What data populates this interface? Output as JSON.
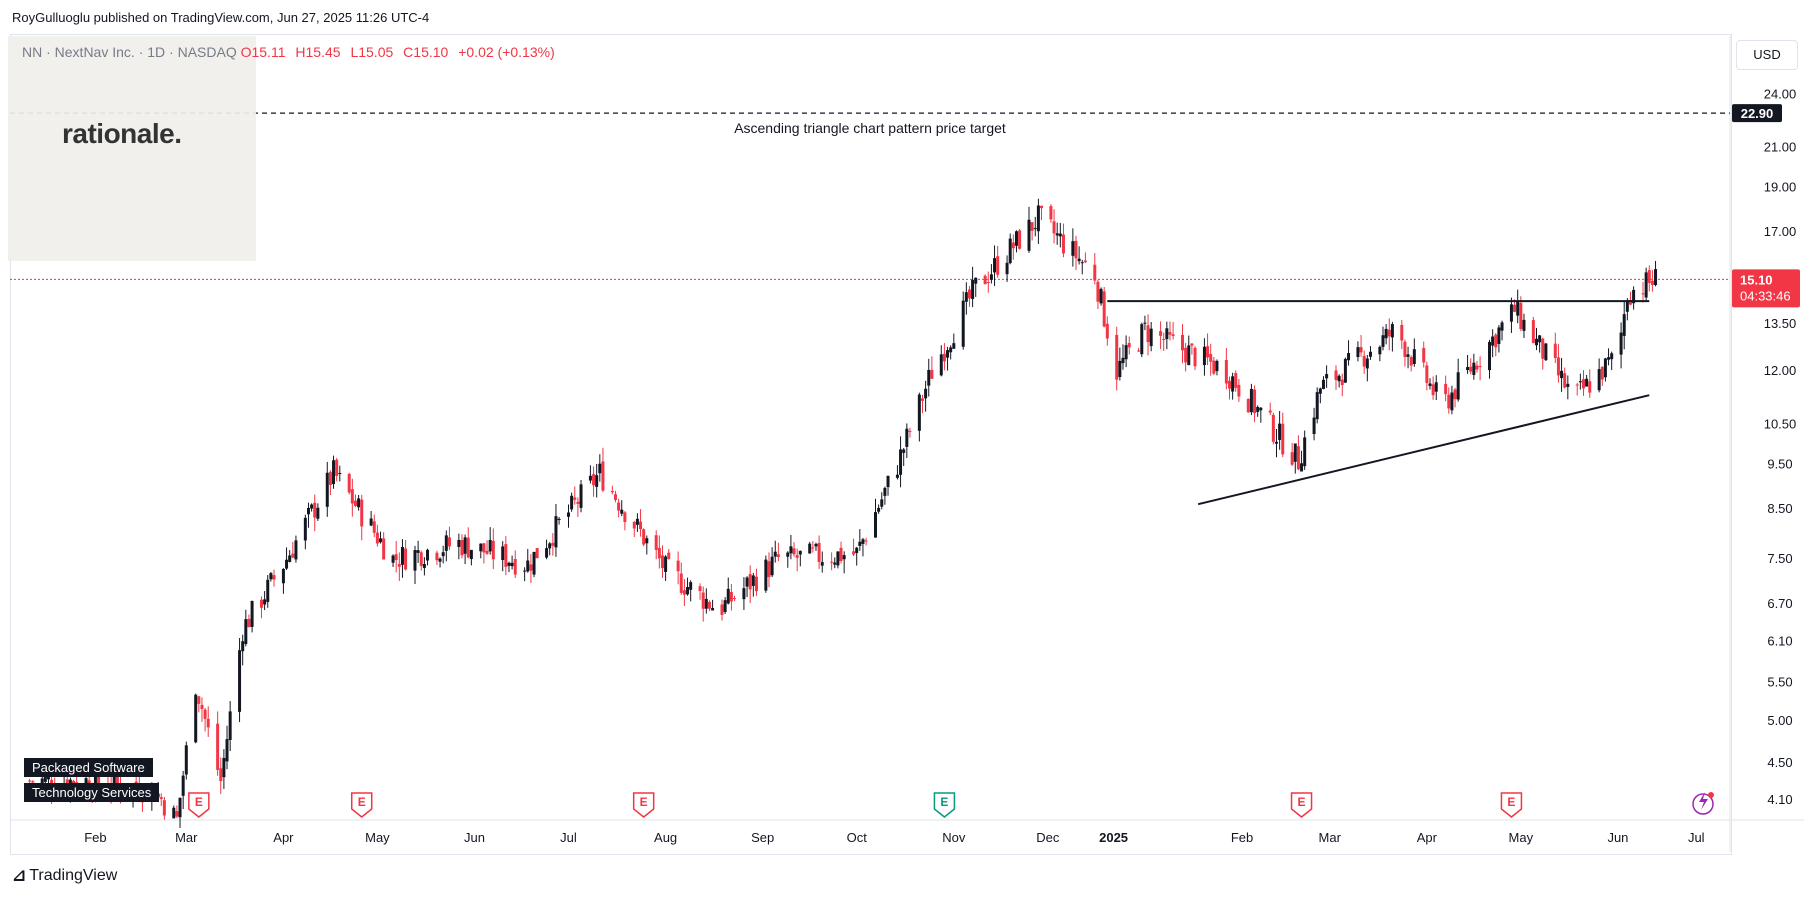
{
  "publisher": "RoyGulluoglu published on TradingView.com, Jun 27, 2025 11:26 UTC-4",
  "header": {
    "symbol": "NN · NextNav Inc. · 1D · NASDAQ",
    "open_label": "O",
    "open": "15.11",
    "high_label": "H",
    "high": "15.45",
    "low_label": "L",
    "low": "15.05",
    "close_label": "C",
    "close": "15.10",
    "change": "+0.02 (+0.13%)"
  },
  "logo_text": "rationale.",
  "currency": "USD",
  "tags": [
    "Packaged Software",
    "Technology Services"
  ],
  "footer_brand": "TradingView",
  "colors": {
    "up": "#089981",
    "down": "#f23645",
    "candle": "#131722",
    "annotation": "#131722"
  },
  "chart_data": {
    "type": "candlestick",
    "y_scale": "log",
    "ylim": [
      3.9,
      27.5
    ],
    "y_ticks": [
      "24.00",
      "21.00",
      "19.00",
      "17.00",
      "13.50",
      "12.00",
      "10.50",
      "9.50",
      "8.50",
      "7.50",
      "6.70",
      "6.10",
      "5.50",
      "5.00",
      "4.50",
      "4.10"
    ],
    "x_ticks": [
      "Feb",
      "Mar",
      "Apr",
      "May",
      "Jun",
      "Jul",
      "Aug",
      "Sep",
      "Oct",
      "Nov",
      "Dec",
      "2025",
      "Feb",
      "Mar",
      "Apr",
      "May",
      "Jun",
      "Jul"
    ],
    "last_price": "15.10",
    "countdown": "04:33:46",
    "target_price": "22.90",
    "target_label": "Ascending triangle chart pattern price target",
    "resistance_level": 14.3,
    "support_line": {
      "from": {
        "date": "2025-02-01",
        "price": 8.6
      },
      "to": {
        "date": "2025-06-25",
        "price": 11.3
      }
    },
    "resistance_line": {
      "from": {
        "date": "2025-01-03",
        "price": 14.3
      },
      "to": {
        "date": "2025-06-25",
        "price": 14.3
      }
    },
    "earnings_markers": [
      {
        "label": "E",
        "month": "Mar 2024"
      },
      {
        "label": "E",
        "month": "May 2024"
      },
      {
        "label": "E",
        "month": "Aug 2024"
      },
      {
        "label": "E",
        "month": "Nov 2024"
      },
      {
        "label": "E",
        "month": "Mar 2025"
      },
      {
        "label": "E",
        "month": "May 2025"
      }
    ],
    "price_path": [
      {
        "date": "2024-01-25",
        "price": 4.3
      },
      {
        "date": "2024-02-15",
        "price": 4.3
      },
      {
        "date": "2024-03-05",
        "price": 4.2
      },
      {
        "date": "2024-03-12",
        "price": 3.9
      },
      {
        "date": "2024-03-18",
        "price": 5.5
      },
      {
        "date": "2024-03-26",
        "price": 4.3
      },
      {
        "date": "2024-04-02",
        "price": 6.3
      },
      {
        "date": "2024-04-15",
        "price": 7.4
      },
      {
        "date": "2024-05-01",
        "price": 9.3
      },
      {
        "date": "2024-05-20",
        "price": 7.5
      },
      {
        "date": "2024-06-10",
        "price": 7.8
      },
      {
        "date": "2024-07-02",
        "price": 7.4
      },
      {
        "date": "2024-07-25",
        "price": 9.3
      },
      {
        "date": "2024-08-15",
        "price": 7.3
      },
      {
        "date": "2024-09-01",
        "price": 6.6
      },
      {
        "date": "2024-09-20",
        "price": 7.5
      },
      {
        "date": "2024-10-15",
        "price": 7.6
      },
      {
        "date": "2024-10-28",
        "price": 9.5
      },
      {
        "date": "2024-11-08",
        "price": 12.0
      },
      {
        "date": "2024-11-22",
        "price": 14.8
      },
      {
        "date": "2024-12-12",
        "price": 17.6
      },
      {
        "date": "2024-12-30",
        "price": 15.3
      },
      {
        "date": "2025-01-06",
        "price": 12.0
      },
      {
        "date": "2025-01-15",
        "price": 13.3
      },
      {
        "date": "2025-02-10",
        "price": 12.0
      },
      {
        "date": "2025-03-05",
        "price": 9.6
      },
      {
        "date": "2025-03-12",
        "price": 11.5
      },
      {
        "date": "2025-04-05",
        "price": 13.3
      },
      {
        "date": "2025-04-20",
        "price": 11.0
      },
      {
        "date": "2025-05-13",
        "price": 14.0
      },
      {
        "date": "2025-06-01",
        "price": 11.2
      },
      {
        "date": "2025-06-15",
        "price": 12.5
      },
      {
        "date": "2025-06-18",
        "price": 14.6
      },
      {
        "date": "2025-06-27",
        "price": 15.1
      }
    ]
  }
}
